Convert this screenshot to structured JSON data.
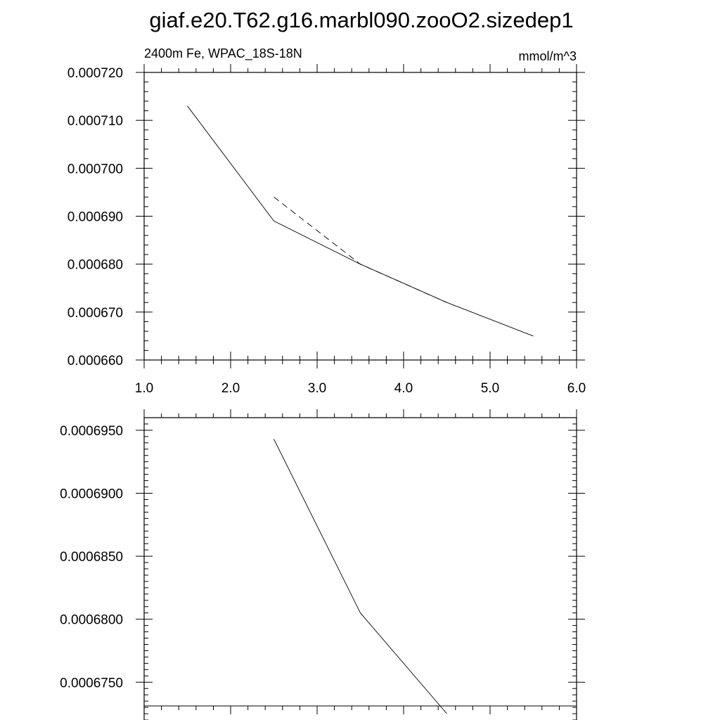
{
  "title": "giaf.e20.T62.g16.marbl090.zooO2.sizedep1",
  "chart_data": [
    {
      "type": "line",
      "left_label": "2400m Fe, WPAC_18S-18N",
      "right_label": "mmol/m^3",
      "xlim": [
        1.0,
        6.0
      ],
      "ylim": [
        0.00066,
        0.00072
      ],
      "x_tick_values": [
        1.0,
        2.0,
        3.0,
        4.0,
        5.0,
        6.0
      ],
      "x_tick_labels": [
        "1.0",
        "2.0",
        "3.0",
        "4.0",
        "5.0",
        "6.0"
      ],
      "x_minor_step": 0.2,
      "y_tick_values": [
        0.00066,
        0.00067,
        0.00068,
        0.00069,
        0.0007,
        0.00071,
        0.00072
      ],
      "y_tick_labels": [
        "0.000660",
        "0.000670",
        "0.000680",
        "0.000690",
        "0.000700",
        "0.000710",
        "0.000720"
      ],
      "y_minor_step": 2e-06,
      "grid": false,
      "series": [
        {
          "dash": "solid",
          "x": [
            1.5,
            2.5,
            3.5,
            4.5,
            5.5
          ],
          "y": [
            0.000713,
            0.000689,
            0.00068,
            0.000672,
            0.000665
          ]
        },
        {
          "dash": "dashed",
          "x": [
            2.5,
            3.5,
            4.5
          ],
          "y": [
            0.000694,
            0.00068,
            0.000672
          ]
        }
      ]
    },
    {
      "type": "line",
      "xlim": [
        1.0,
        6.0
      ],
      "ylim": [
        0.000672,
        0.000696
      ],
      "x_tick_values": [
        1.0,
        2.0,
        3.0,
        4.0,
        5.0,
        6.0
      ],
      "x_minor_step": 0.2,
      "y_tick_values": [
        0.000675,
        0.00068,
        0.000685,
        0.00069,
        0.000695
      ],
      "y_tick_labels": [
        "0.0006750",
        "0.0006800",
        "0.0006850",
        "0.0006900",
        "0.0006950"
      ],
      "y_minor_step": 5e-07,
      "grid": false,
      "series": [
        {
          "dash": "solid",
          "x": [
            2.5,
            3.5,
            4.5
          ],
          "y": [
            0.0006943,
            0.0006805,
            0.0006725
          ]
        }
      ]
    }
  ]
}
